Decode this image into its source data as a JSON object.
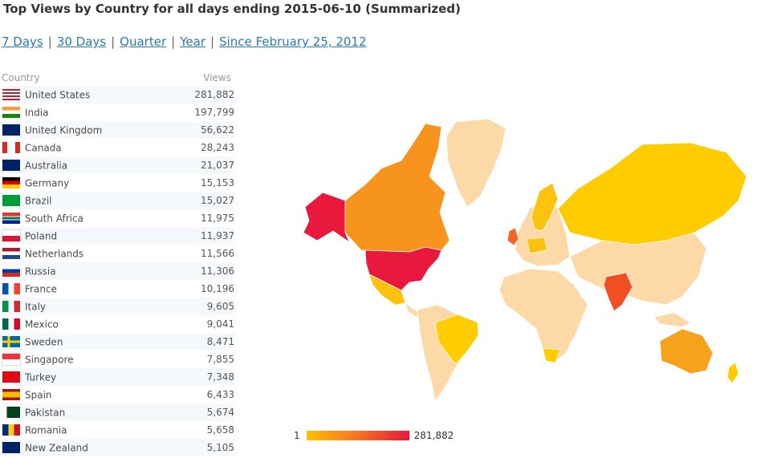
{
  "title": "Top Views by Country for all days ending 2015-06-10 (Summarized)",
  "periods": [
    "7 Days",
    "30 Days",
    "Quarter",
    "Year",
    "Since February 25, 2012"
  ],
  "table": {
    "col_country": "Country",
    "col_views": "Views",
    "rows": [
      {
        "country": "United States",
        "views": "281,882",
        "flag": "us-flag-icon"
      },
      {
        "country": "India",
        "views": "197,799",
        "flag": "india-flag-icon"
      },
      {
        "country": "United Kingdom",
        "views": "56,622",
        "flag": "uk-flag-icon"
      },
      {
        "country": "Canada",
        "views": "28,243",
        "flag": "canada-flag-icon"
      },
      {
        "country": "Australia",
        "views": "21,037",
        "flag": "australia-flag-icon"
      },
      {
        "country": "Germany",
        "views": "15,153",
        "flag": "germany-flag-icon"
      },
      {
        "country": "Brazil",
        "views": "15,027",
        "flag": "brazil-flag-icon"
      },
      {
        "country": "South Africa",
        "views": "11,975",
        "flag": "south-africa-flag-icon"
      },
      {
        "country": "Poland",
        "views": "11,937",
        "flag": "poland-flag-icon"
      },
      {
        "country": "Netherlands",
        "views": "11,566",
        "flag": "netherlands-flag-icon"
      },
      {
        "country": "Russia",
        "views": "11,306",
        "flag": "russia-flag-icon"
      },
      {
        "country": "France",
        "views": "10,196",
        "flag": "france-flag-icon"
      },
      {
        "country": "Italy",
        "views": "9,605",
        "flag": "italy-flag-icon"
      },
      {
        "country": "Mexico",
        "views": "9,041",
        "flag": "mexico-flag-icon"
      },
      {
        "country": "Sweden",
        "views": "8,471",
        "flag": "sweden-flag-icon"
      },
      {
        "country": "Singapore",
        "views": "7,855",
        "flag": "singapore-flag-icon"
      },
      {
        "country": "Turkey",
        "views": "7,348",
        "flag": "turkey-flag-icon"
      },
      {
        "country": "Spain",
        "views": "6,433",
        "flag": "spain-flag-icon"
      },
      {
        "country": "Pakistan",
        "views": "5,674",
        "flag": "pakistan-flag-icon"
      },
      {
        "country": "Romania",
        "views": "5,658",
        "flag": "romania-flag-icon"
      },
      {
        "country": "New Zealand",
        "views": "5,105",
        "flag": "new-zealand-flag-icon"
      }
    ]
  },
  "legend": {
    "min": "1",
    "max": "281,882"
  },
  "colors": {
    "low": "#ffc000",
    "mid": "#f47b20",
    "high": "#e8193c",
    "light": "#fdd9a8",
    "link": "#2a7ab0"
  }
}
